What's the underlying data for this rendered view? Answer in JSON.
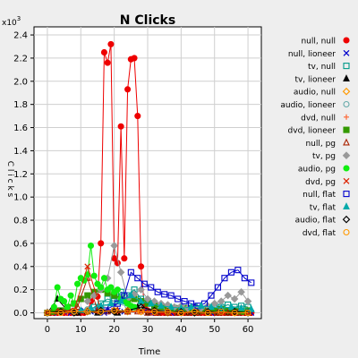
{
  "chart_data": {
    "type": "line",
    "title": "N Clicks",
    "xlabel": "Time",
    "ylabel": "C l i c k s",
    "y_multiplier_label": "x10",
    "y_multiplier_exp": "3",
    "xlim": [
      -4,
      64
    ],
    "ylim": [
      -0.05,
      2.47
    ],
    "x_ticks": [
      0,
      10,
      20,
      30,
      40,
      50,
      60
    ],
    "y_ticks": [
      0.0,
      0.2,
      0.4,
      0.6,
      0.8,
      1.0,
      1.2,
      1.4,
      1.6,
      1.8,
      2.0,
      2.2,
      2.4
    ],
    "y_tick_labels": [
      "0.0",
      "0.2",
      "0.4",
      "0.6",
      "0.8",
      "1.0",
      "1.2",
      "1.4",
      "1.6",
      "1.8",
      "2.0",
      "2.2",
      "2.4"
    ],
    "grid": true,
    "legend_position": "right",
    "series": [
      {
        "name": "null, null",
        "color": "#ee0000",
        "marker": "circle-filled",
        "x": [
          0,
          1,
          2,
          3,
          4,
          5,
          6,
          7,
          8,
          9,
          10,
          11,
          12,
          13,
          14,
          15,
          16,
          17,
          18,
          19,
          20,
          21,
          22,
          23,
          24,
          25,
          26,
          27,
          28,
          29,
          30,
          31,
          32,
          33,
          34,
          35,
          36,
          37,
          38,
          39,
          40,
          41,
          42,
          43,
          44,
          45,
          46,
          47,
          48,
          49,
          50,
          51,
          52,
          53,
          54,
          55,
          56,
          57,
          58,
          59,
          60,
          61
        ],
        "y": [
          0,
          0,
          0,
          0,
          0,
          0,
          0,
          0,
          0,
          0,
          0,
          0,
          0.01,
          0.1,
          0.15,
          0.14,
          0.6,
          2.25,
          2.16,
          2.32,
          0.47,
          0.43,
          1.61,
          0.47,
          1.93,
          2.19,
          2.2,
          1.7,
          0.4,
          0.05,
          0.02,
          0.01,
          0,
          0,
          0,
          0,
          0,
          0,
          0,
          0,
          0,
          0,
          0,
          0,
          0,
          0,
          0,
          0,
          0,
          0,
          0,
          0,
          0,
          0,
          0,
          0,
          0,
          0,
          0,
          0,
          0,
          0
        ]
      },
      {
        "name": "null, lioneer",
        "color": "#0000cc",
        "marker": "x",
        "x": [
          0,
          3,
          5,
          7,
          9,
          11,
          13,
          15,
          17,
          19,
          21,
          23,
          25,
          27,
          29,
          31,
          33,
          35,
          37,
          39,
          41,
          43,
          45,
          47,
          49,
          51,
          53,
          55,
          57,
          59,
          61
        ],
        "y": [
          0,
          0,
          0.01,
          0,
          0.01,
          0.02,
          0.01,
          0.02,
          0,
          0.01,
          0.02,
          0.01,
          0.03,
          0.02,
          0.01,
          0,
          0.01,
          0.02,
          0,
          0.01,
          0.01,
          0,
          0.01,
          0.02,
          0,
          0.01,
          0.02,
          0.01,
          0,
          0.01,
          0
        ]
      },
      {
        "name": "tv, null",
        "color": "#009988",
        "marker": "square-open",
        "x": [
          14,
          16,
          18,
          20,
          22,
          24,
          26,
          28,
          30,
          32,
          34,
          36,
          38,
          40,
          42,
          44,
          46,
          48,
          50,
          52,
          54,
          56,
          58,
          60
        ],
        "y": [
          0.05,
          0.08,
          0.12,
          0.1,
          0.18,
          0.15,
          0.2,
          0.12,
          0.1,
          0.08,
          0.06,
          0.05,
          0.04,
          0.03,
          0.04,
          0.05,
          0.03,
          0.04,
          0.06,
          0.05,
          0.07,
          0.05,
          0.06,
          0.05
        ]
      },
      {
        "name": "tv, lioneer",
        "color": "#000000",
        "marker": "triangle-filled",
        "x": [
          0,
          3,
          6,
          9,
          12,
          15,
          18,
          21,
          24,
          27,
          30,
          33,
          36,
          39,
          42,
          45,
          48,
          51,
          54,
          57,
          60
        ],
        "y": [
          0,
          0.12,
          0.02,
          0,
          0.01,
          0,
          0.02,
          0,
          0.01,
          0.05,
          0,
          0,
          0,
          0,
          0,
          0,
          0,
          0,
          0,
          0,
          0
        ]
      },
      {
        "name": "audio, null",
        "color": "#ff9900",
        "marker": "diamond-open",
        "x": [
          0,
          4,
          8,
          12,
          16,
          20,
          24,
          28,
          32,
          36,
          40,
          44,
          48,
          52,
          56,
          60
        ],
        "y": [
          0,
          0.01,
          0.01,
          0.02,
          0.01,
          0.02,
          0.01,
          0.01,
          0.01,
          0,
          0.01,
          0,
          0.01,
          0.01,
          0,
          0.01
        ]
      },
      {
        "name": "audio, lioneer",
        "color": "#66aaaa",
        "marker": "circle-open",
        "x": [
          0,
          4,
          8,
          12,
          16,
          20,
          24,
          28,
          32,
          36,
          40,
          44,
          48,
          52,
          56,
          60
        ],
        "y": [
          0,
          0.01,
          0.02,
          0.03,
          0.05,
          0.08,
          0.06,
          0.04,
          0.03,
          0.02,
          0.02,
          0.02,
          0.03,
          0.04,
          0.03,
          0.02
        ]
      },
      {
        "name": "dvd, null",
        "color": "#ff6633",
        "marker": "plus",
        "x": [
          0,
          3,
          6,
          9,
          12,
          15,
          18,
          21,
          24,
          27,
          30,
          33,
          36,
          39,
          42,
          45,
          48,
          51,
          54,
          57,
          60
        ],
        "y": [
          0,
          0.01,
          0,
          0.01,
          0.02,
          0.01,
          0.02,
          0.01,
          0.01,
          0.02,
          0.01,
          0,
          0.01,
          0,
          0.01,
          0,
          0.01,
          0,
          0.01,
          0,
          0
        ]
      },
      {
        "name": "dvd, lioneer",
        "color": "#339900",
        "marker": "square-filled",
        "x": [
          0,
          2,
          4,
          6,
          8,
          10,
          12,
          14,
          16,
          18,
          20,
          22,
          24,
          26,
          28,
          30,
          32,
          34,
          36,
          38,
          40,
          42,
          44,
          46,
          48,
          50,
          52,
          54,
          56,
          58,
          60
        ],
        "y": [
          0,
          0.01,
          0.02,
          0.05,
          0.08,
          0.12,
          0.15,
          0.18,
          0.2,
          0.17,
          0.15,
          0.12,
          0.1,
          0.12,
          0.1,
          0.08,
          0.06,
          0.05,
          0.05,
          0.04,
          0.03,
          0.04,
          0.03,
          0.02,
          0.03,
          0.02,
          0.03,
          0.02,
          0.02,
          0.01,
          0.02
        ]
      },
      {
        "name": "null, pg",
        "color": "#aa2200",
        "marker": "triangle-open",
        "x": [
          0,
          3,
          6,
          9,
          12,
          15,
          18,
          21,
          24,
          27,
          30,
          33,
          36,
          39,
          42,
          45,
          48,
          51,
          54,
          57,
          60
        ],
        "y": [
          0,
          0.01,
          0.02,
          0.05,
          0.3,
          0.02,
          0.01,
          0.02,
          0.01,
          0.01,
          0,
          0,
          0,
          0,
          0,
          0,
          0,
          0,
          0,
          0,
          0
        ]
      },
      {
        "name": "tv, pg",
        "color": "#999999",
        "marker": "diamond-filled",
        "x": [
          12,
          14,
          16,
          18,
          20,
          22,
          24,
          26,
          28,
          30,
          32,
          34,
          36,
          38,
          40,
          42,
          44,
          46,
          48,
          50,
          52,
          54,
          56,
          58,
          60
        ],
        "y": [
          0.1,
          0.15,
          0.2,
          0.3,
          0.58,
          0.35,
          0.12,
          0.16,
          0.2,
          0.12,
          0.1,
          0.08,
          0.07,
          0.05,
          0.06,
          0.04,
          0.05,
          0.04,
          0.06,
          0.08,
          0.1,
          0.15,
          0.12,
          0.18,
          0.1
        ]
      },
      {
        "name": "audio, pg",
        "color": "#11ee11",
        "marker": "circle-filled",
        "x": [
          2,
          3,
          4,
          5,
          6,
          7,
          8,
          9,
          10,
          11,
          12,
          13,
          14,
          15,
          16,
          17,
          18,
          19,
          20,
          21,
          22,
          23,
          24,
          25,
          26
        ],
        "y": [
          0.05,
          0.22,
          0.12,
          0.1,
          0.05,
          0.15,
          0.08,
          0.25,
          0.3,
          0.28,
          0.33,
          0.58,
          0.32,
          0.25,
          0.22,
          0.3,
          0.2,
          0.22,
          0.18,
          0.2,
          0.12,
          0.1,
          0.08,
          0.06,
          0.05
        ]
      },
      {
        "name": "dvd, pg",
        "color": "#dd2200",
        "marker": "x",
        "x": [
          0,
          4,
          8,
          12,
          16,
          20,
          24,
          28,
          32,
          36,
          40,
          44,
          48,
          52,
          56,
          60
        ],
        "y": [
          0,
          0.01,
          0.02,
          0.4,
          0.03,
          0.02,
          0.01,
          0.01,
          0,
          0.01,
          0,
          0,
          0.01,
          0,
          0,
          0
        ]
      },
      {
        "name": "null, flat",
        "color": "#0000cc",
        "marker": "square-open",
        "x": [
          17,
          19,
          21,
          23,
          25,
          27,
          29,
          31,
          33,
          35,
          37,
          39,
          41,
          43,
          45,
          47,
          49,
          51,
          53,
          55,
          57,
          59,
          61
        ],
        "y": [
          0.02,
          0.05,
          0.08,
          0.15,
          0.35,
          0.3,
          0.25,
          0.22,
          0.18,
          0.16,
          0.15,
          0.12,
          0.1,
          0.08,
          0.06,
          0.08,
          0.15,
          0.22,
          0.3,
          0.35,
          0.37,
          0.3,
          0.26
        ]
      },
      {
        "name": "tv, flat",
        "color": "#00aaaa",
        "marker": "triangle-filled",
        "x": [
          10,
          13,
          16,
          19,
          22,
          25,
          28,
          31,
          34,
          37,
          40,
          43,
          46,
          49,
          52,
          55,
          58,
          61
        ],
        "y": [
          0.02,
          0.04,
          0.06,
          0.08,
          0.1,
          0.15,
          0.1,
          0.08,
          0.06,
          0.05,
          0.04,
          0.05,
          0.06,
          0.05,
          0.04,
          0.05,
          0.04,
          0.03
        ]
      },
      {
        "name": "audio, flat",
        "color": "#000000",
        "marker": "diamond-open",
        "x": [
          0,
          4,
          8,
          12,
          16,
          20,
          24,
          28,
          32,
          36,
          40,
          44,
          48,
          52,
          56,
          60
        ],
        "y": [
          0,
          0.01,
          0,
          0.01,
          0.02,
          0.01,
          0.02,
          0.05,
          0.02,
          0.01,
          0.01,
          0,
          0.01,
          0.01,
          0.01,
          0
        ]
      },
      {
        "name": "dvd, flat",
        "color": "#ff9900",
        "marker": "circle-open",
        "x": [
          0,
          4,
          8,
          12,
          16,
          20,
          24,
          28,
          32,
          36,
          40,
          44,
          48,
          52,
          56,
          60
        ],
        "y": [
          0,
          0,
          0.01,
          0.01,
          0.01,
          0.02,
          0.02,
          0.01,
          0.01,
          0.01,
          0,
          0.01,
          0,
          0.01,
          0,
          0
        ]
      }
    ]
  }
}
